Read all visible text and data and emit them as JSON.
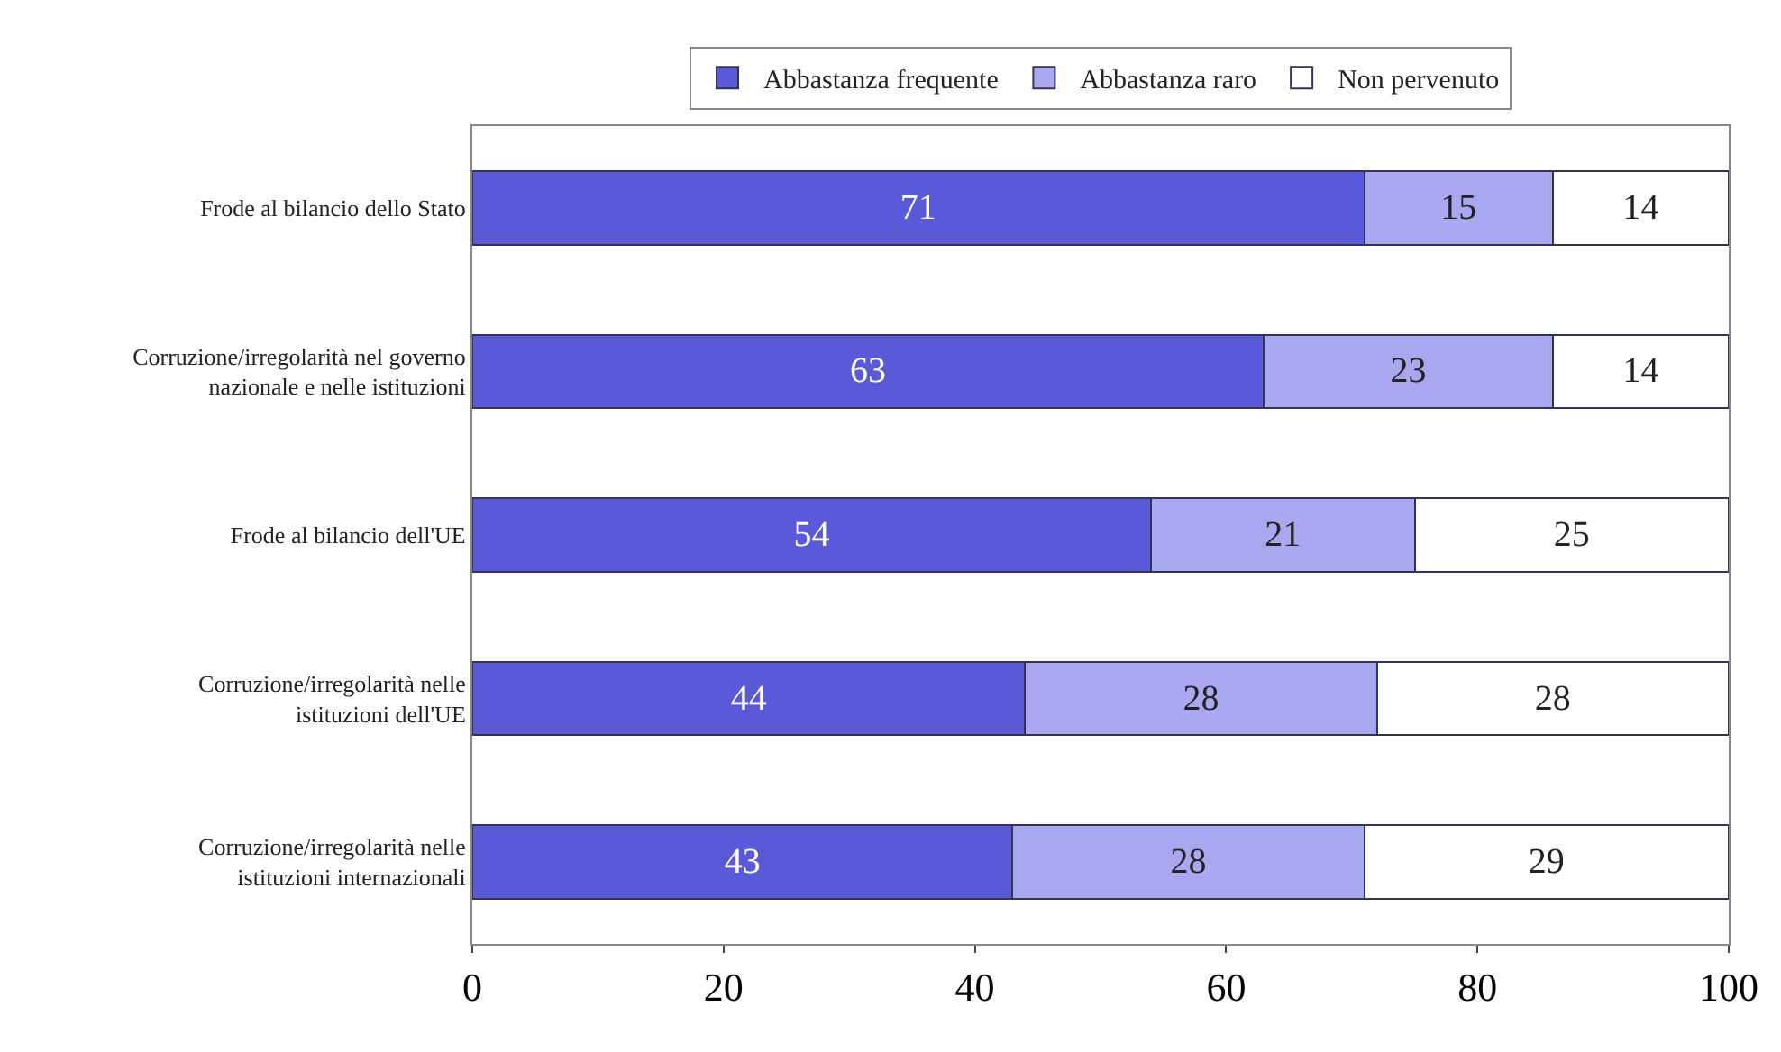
{
  "chart_data": {
    "type": "bar",
    "orientation": "horizontal",
    "stacked": true,
    "data_labels": true,
    "legend": "top",
    "categories": [
      "Frode al bilancio dello Stato",
      "Corruzione/irregolarità nel governo nazionale e nelle istituzioni",
      "Frode al bilancio dell'UE",
      "Corruzione/irregolarità nelle istituzioni dell'UE",
      "Corruzione/irregolarità nelle istituzioni internazionali"
    ],
    "xlim": [
      0,
      100
    ],
    "xticks": [
      0,
      20,
      40,
      60,
      80,
      100
    ],
    "series": [
      {
        "name": "Abbastanza frequente",
        "color": "#5a5ad8",
        "values": [
          71,
          63,
          54,
          44,
          43
        ]
      },
      {
        "name": "Abbastanza raro",
        "color": "#a8a8f0",
        "values": [
          15,
          23,
          21,
          28,
          28
        ]
      },
      {
        "name": "Non pervenuto",
        "color": "#ffffff",
        "values": [
          14,
          14,
          25,
          28,
          29
        ]
      }
    ]
  }
}
